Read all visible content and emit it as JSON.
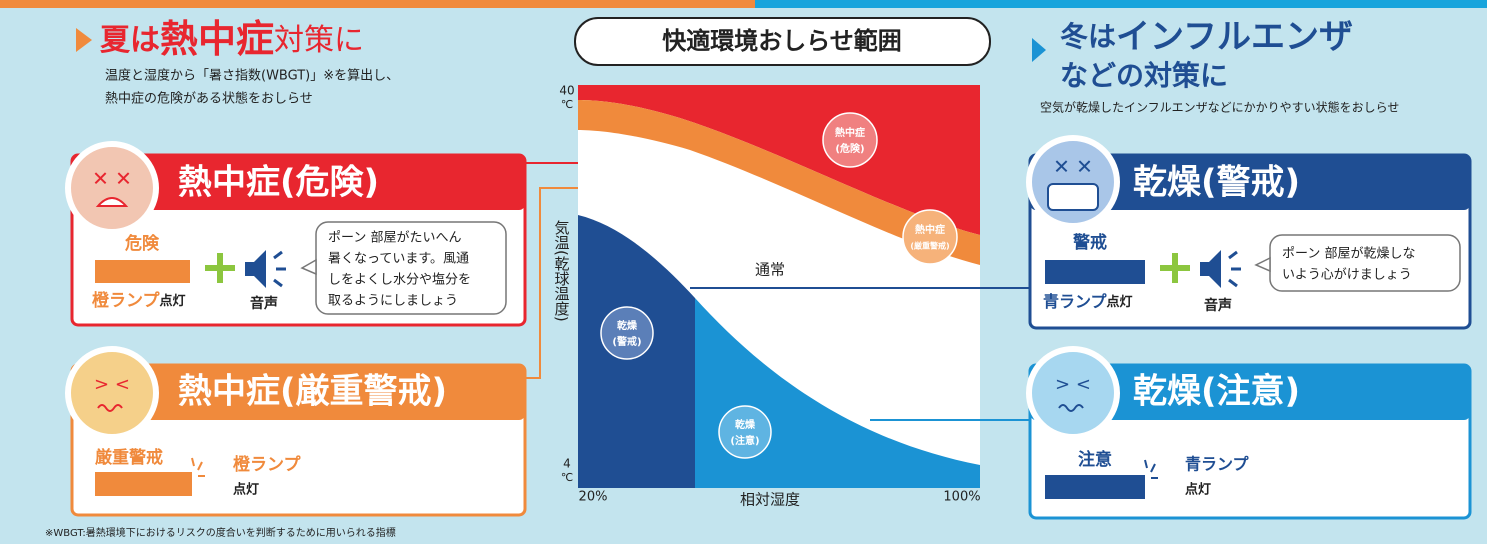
{
  "summer": {
    "title_pre": "夏は",
    "title_em": "熱中症",
    "title_post": "対策に",
    "description": [
      "温度と湿度から「暑さ指数(WBGT)」※を算出し、",
      "熱中症の危険がある状態をおしらせ"
    ],
    "cards": [
      {
        "title": "熱中症(危険)",
        "level": "危険",
        "lamp": "橙ランプ",
        "lamp_suffix": "点灯",
        "voice": "音声",
        "message": [
          "ポーン 部屋がたいへん",
          "暑くなっています。風通",
          "しをよくし水分や塩分を",
          "取るようにしましょう"
        ]
      },
      {
        "title": "熱中症(厳重警戒)",
        "level": "厳重警戒",
        "lamp": "橙ランプ",
        "lamp_suffix": "点灯"
      }
    ]
  },
  "chart": {
    "title": "快適環境おしらせ範囲",
    "y_top": "40",
    "y_bottom": "4",
    "y_unit": "℃",
    "y_label": "気温(乾球温度)",
    "x_left": "20%",
    "x_right": "100%",
    "x_label": "相対湿度",
    "zones": [
      [
        "熱中症",
        "(危険)"
      ],
      [
        "熱中症",
        "(厳重警戒)"
      ],
      [
        "通常"
      ],
      [
        "乾燥",
        "(警戒)"
      ],
      [
        "乾燥",
        "(注意)"
      ]
    ]
  },
  "winter": {
    "title_pre": "冬は",
    "title_em": "インフルエンザ",
    "title_line2": "などの対策に",
    "description": "空気が乾燥したインフルエンザなどにかかりやすい状態をおしらせ",
    "cards": [
      {
        "title": "乾燥(警戒)",
        "level": "警戒",
        "lamp": "青ランプ",
        "lamp_suffix": "点灯",
        "voice": "音声",
        "message": [
          "ポーン 部屋が乾燥しな",
          "いよう心がけましょう"
        ]
      },
      {
        "title": "乾燥(注意)",
        "level": "注意",
        "lamp": "青ランプ",
        "lamp_suffix": "点灯"
      }
    ]
  },
  "footnote": "※WBGT:暑熱環境下におけるリスクの度合いを判断するために用いられる指標"
}
